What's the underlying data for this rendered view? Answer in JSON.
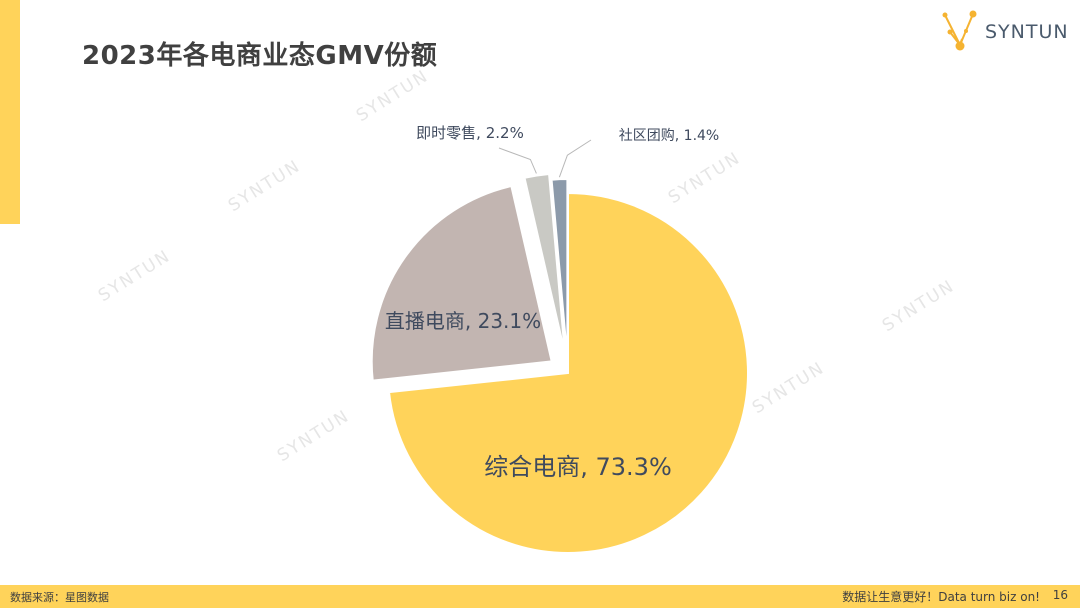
{
  "title": "2023年各电商业态GMV份额",
  "logo": {
    "text": "SYNTUN",
    "icon": "constellation-logo-icon"
  },
  "watermark_text": "SYNTUN",
  "footer": {
    "source": "数据来源：星图数据",
    "slogan": "数据让生意更好！Data turn biz on!",
    "page_number": "16"
  },
  "colors": {
    "accent": "#FFD35A",
    "slice_1": "#FFD35A",
    "slice_2": "#C2B5B1",
    "slice_3": "#C9C9C4",
    "slice_4": "#8C9AAA",
    "label": "#3F4A5E"
  },
  "chart_data": {
    "type": "pie",
    "exploded": true,
    "slices": [
      {
        "name": "综合电商",
        "value": 73.3,
        "label": "综合电商, 73.3%"
      },
      {
        "name": "直播电商",
        "value": 23.1,
        "label": "直播电商, 23.1%"
      },
      {
        "name": "即时零售",
        "value": 2.2,
        "label": "即时零售, 2.2%"
      },
      {
        "name": "社区团购",
        "value": 1.4,
        "label": "社区团购, 1.4%"
      }
    ]
  }
}
